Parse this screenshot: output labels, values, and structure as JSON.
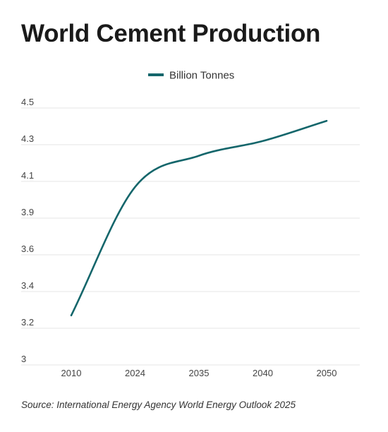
{
  "chart_data": {
    "type": "line",
    "title": "World Cement Production",
    "categories": [
      "2010",
      "2024",
      "2035",
      "2040",
      "2050"
    ],
    "series": [
      {
        "name": "Billion Tonnes",
        "values": [
          3.27,
          4.07,
          4.24,
          4.32,
          4.43
        ],
        "color": "#14666b"
      }
    ],
    "y_tick_labels": [
      "4.5",
      "4.3",
      "4.1",
      "3.9",
      "3.6",
      "3.4",
      "3.2",
      "3"
    ],
    "ylim": [
      3,
      4.5
    ],
    "grid": true,
    "legend_position": "top-center",
    "source": "Source: International Energy Agency World Energy Outlook 2025"
  }
}
